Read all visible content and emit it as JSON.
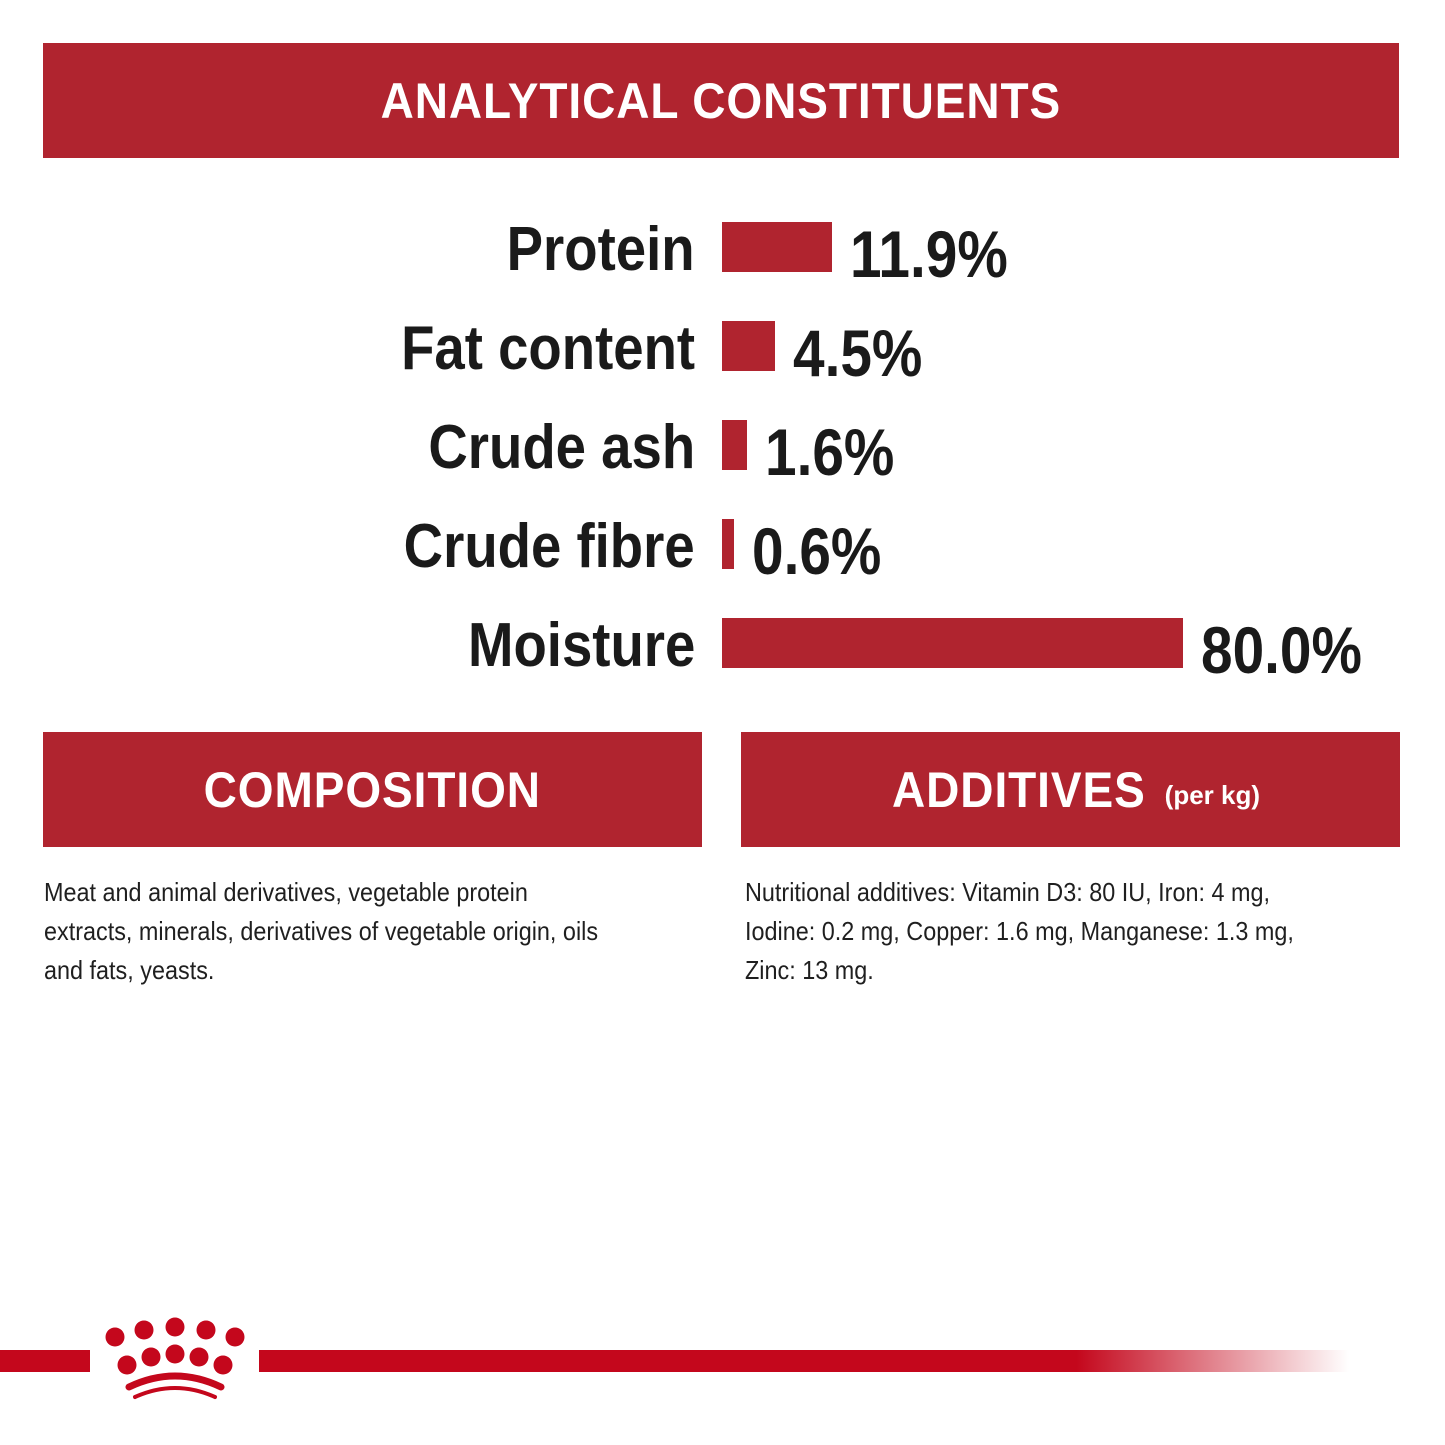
{
  "headers": {
    "analytical": "ANALYTICAL CONSTITUENTS",
    "composition": "COMPOSITION",
    "additives": "ADDITIVES",
    "additives_unit": "(per kg)"
  },
  "chart_data": {
    "type": "bar",
    "orientation": "horizontal",
    "categories": [
      "Protein",
      "Fat content",
      "Crude ash",
      "Crude fibre",
      "Moisture"
    ],
    "values": [
      11.9,
      4.5,
      1.6,
      0.6,
      80.0
    ],
    "value_labels": [
      "11.9%",
      "4.5%",
      "1.6%",
      "0.6%",
      "80.0%"
    ],
    "unit": "%",
    "grid": false,
    "bar_color": "#b0242f"
  },
  "composition_lines": [
    "Meat and animal derivatives, vegetable protein",
    "extracts, minerals, derivatives of vegetable origin, oils",
    "and fats, yeasts."
  ],
  "additives_lines": [
    "Nutritional additives: Vitamin D3: 80 IU, Iron: 4 mg,",
    "Iodine: 0.2 mg, Copper: 1.6 mg, Manganese: 1.3 mg,",
    "Zinc: 13 mg."
  ],
  "colors": {
    "header": "#b0242f",
    "brand": "#c4071c"
  },
  "logo": {
    "icon": "royal-canin-crown-logo"
  }
}
